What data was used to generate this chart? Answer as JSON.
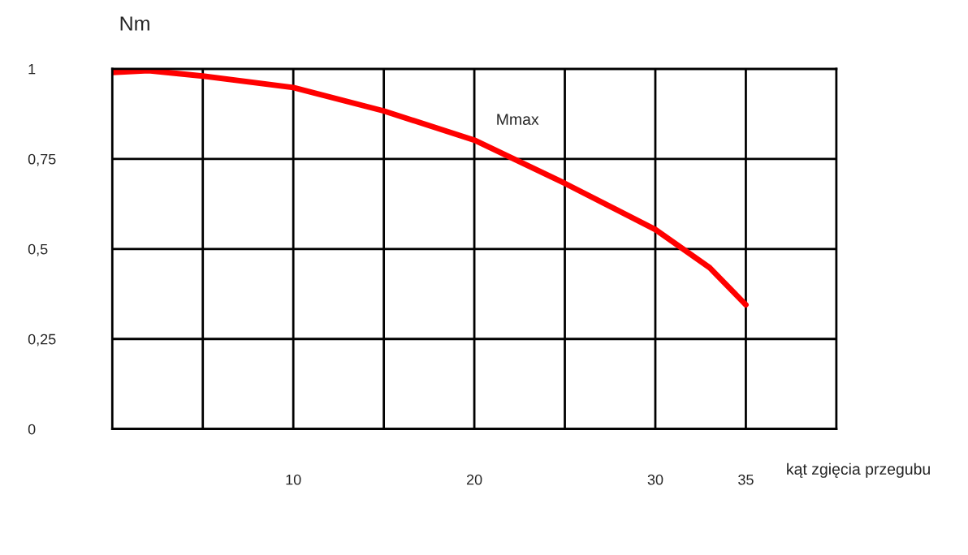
{
  "chart_data": {
    "type": "line",
    "xlabel": "kąt zgięcia przegubu",
    "ylabel": "Nm",
    "x": [
      0,
      2,
      5,
      10,
      15,
      20,
      25,
      30,
      33,
      35
    ],
    "series": [
      {
        "name": "Mmax",
        "color": "#ff0000",
        "values": [
          0.99,
          0.995,
          0.98,
          0.948,
          0.883,
          0.802,
          0.682,
          0.554,
          0.448,
          0.345
        ]
      }
    ],
    "xlim": [
      0,
      40
    ],
    "ylim": [
      0,
      1
    ],
    "xticks": [
      {
        "value": 5,
        "label": null
      },
      10,
      {
        "value": 15,
        "label": null
      },
      20,
      {
        "value": 25,
        "label": null
      },
      30,
      35
    ],
    "yticks": [
      0,
      {
        "value": 0.25,
        "label": "0,25"
      },
      {
        "value": 0.5,
        "label": "0,5"
      },
      {
        "value": 0.75,
        "label": "0,75"
      },
      1
    ],
    "grid": true,
    "legend": false,
    "marker": "none",
    "line_style": "solid"
  }
}
